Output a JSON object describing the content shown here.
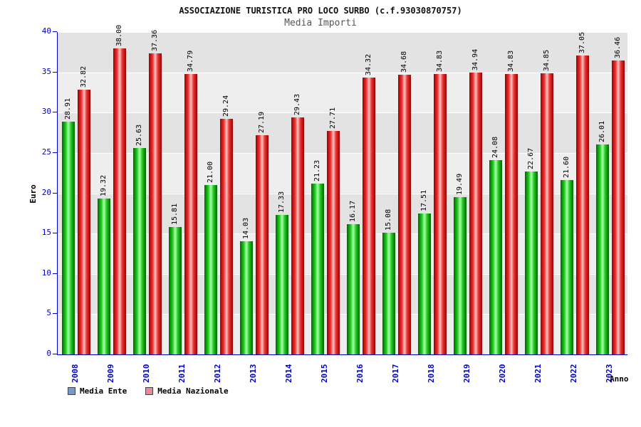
{
  "header": {
    "title": "ASSOCIAZIONE TURISTICA PRO LOCO SURBO (c.f.93030870757)",
    "subtitle": "Media Importi"
  },
  "colors": {
    "axis_text": "#0000cc",
    "value_label": "#000000",
    "plot_band_light": "#eeeeee",
    "plot_band_dark": "#e3e3e3",
    "gridline": "#ffffff"
  },
  "chart_data": {
    "type": "bar",
    "title": "ASSOCIAZIONE TURISTICA PRO LOCO SURBO (c.f.93030870757)",
    "subtitle": "Media Importi",
    "xlabel": "Anno",
    "ylabel": "Euro",
    "ylim": [
      0,
      40
    ],
    "yticks": [
      0,
      5,
      10,
      15,
      20,
      25,
      30,
      35,
      40
    ],
    "grid": true,
    "legend_position": "bottom-left",
    "categories": [
      "2008",
      "2009",
      "2010",
      "2011",
      "2012",
      "2013",
      "2014",
      "2015",
      "2016",
      "2017",
      "2018",
      "2019",
      "2020",
      "2021",
      "2022",
      "2023"
    ],
    "series": [
      {
        "name": "Media Ente",
        "legend_color": "#7799cc",
        "color_dark": "#006600",
        "color_mid": "#22cc22",
        "color_light": "#aaffaa",
        "values": [
          28.91,
          19.32,
          25.63,
          15.81,
          21.0,
          14.03,
          17.33,
          21.23,
          16.17,
          15.08,
          17.51,
          19.49,
          24.08,
          22.67,
          21.6,
          26.01
        ]
      },
      {
        "name": "Media Nazionale",
        "legend_color": "#ee8899",
        "color_dark": "#990000",
        "color_mid": "#ee3333",
        "color_light": "#ffc4c4",
        "values": [
          32.82,
          38.0,
          37.36,
          34.79,
          29.24,
          27.19,
          29.43,
          27.71,
          34.32,
          34.68,
          34.83,
          34.94,
          34.83,
          34.85,
          37.05,
          36.46
        ]
      }
    ]
  }
}
